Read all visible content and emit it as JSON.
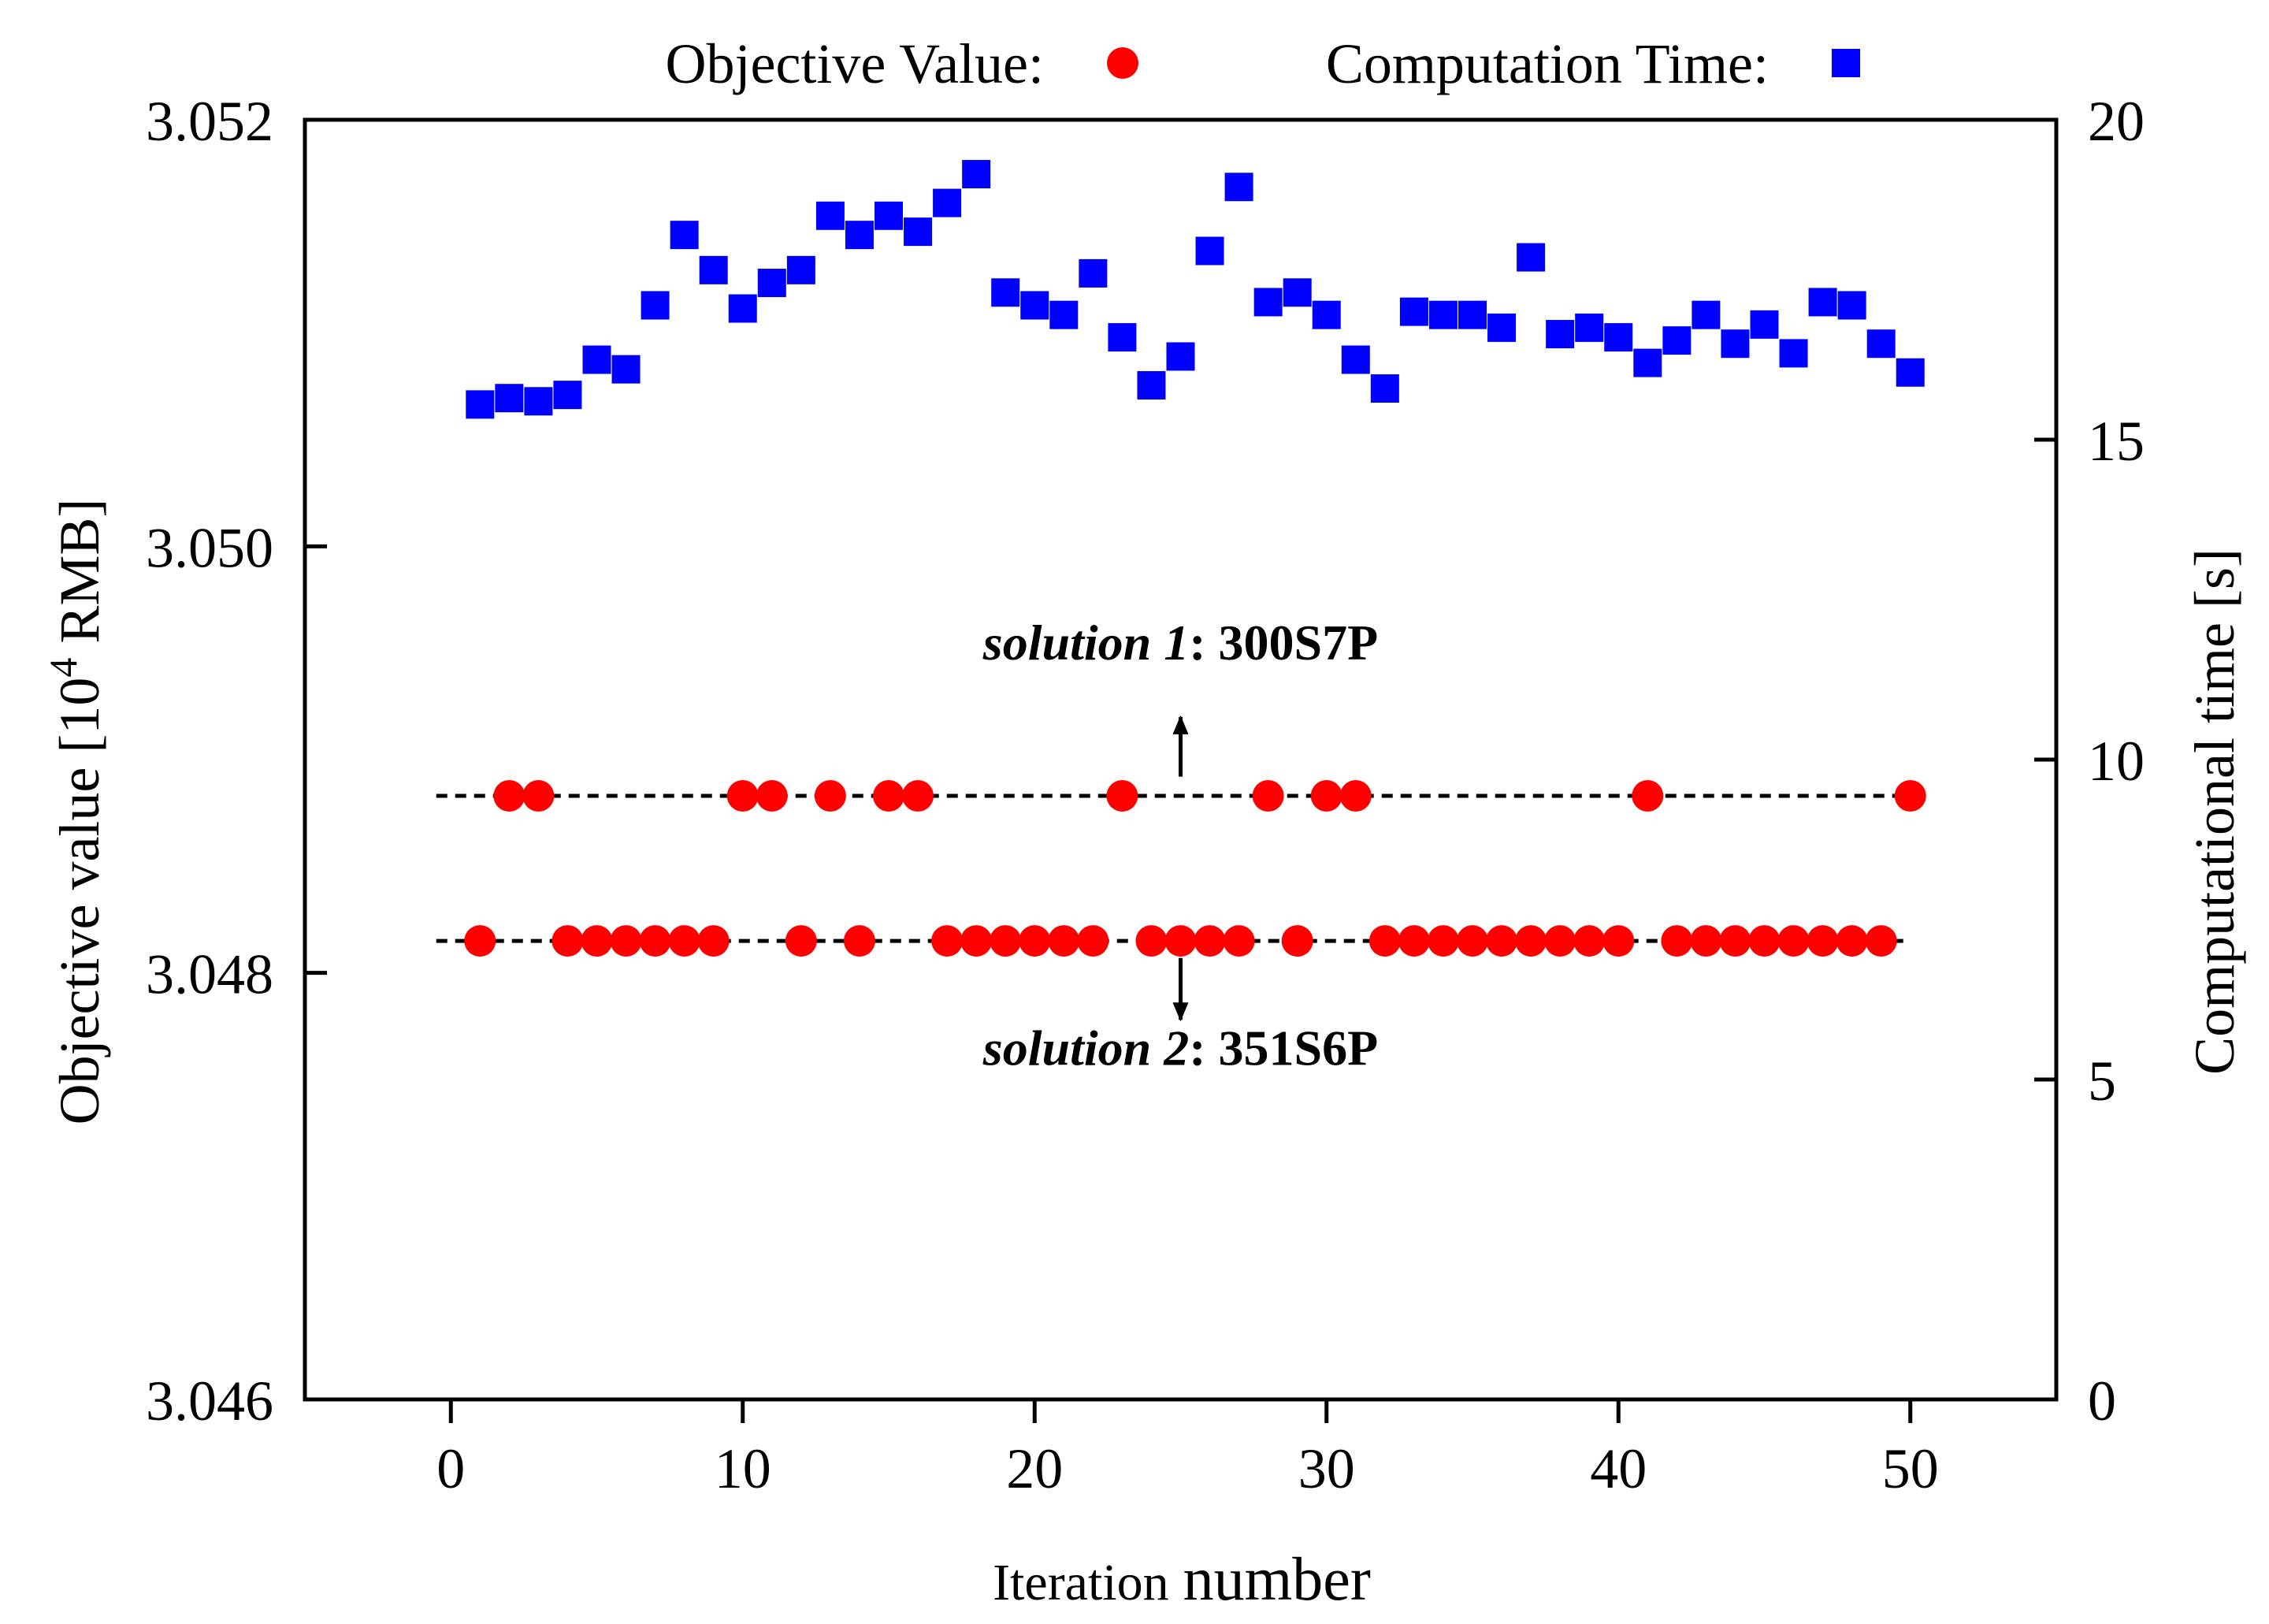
{
  "chart_data": {
    "type": "scatter",
    "title": "",
    "xlabel": {
      "part1": "Iteration",
      "part2": "number"
    },
    "ylabel_left": {
      "prefix": "Objective value [10",
      "sup": "4",
      "suffix": " RMB]"
    },
    "ylabel_right": "Computational time [s]",
    "xlim": [
      -5,
      55
    ],
    "ylim_left": [
      3.046,
      3.052
    ],
    "ylim_right": [
      0,
      20
    ],
    "x_ticks": [
      0,
      10,
      20,
      30,
      40,
      50
    ],
    "x_tick_labels": [
      "0",
      "10",
      "20",
      "30",
      "40",
      "50"
    ],
    "y_left_ticks": [
      3.046,
      3.048,
      3.05,
      3.052
    ],
    "y_left_tick_labels": [
      "3.046",
      "3.048",
      "3.050",
      "3.052"
    ],
    "y_right_ticks": [
      0,
      5,
      10,
      15,
      20
    ],
    "y_right_tick_labels": [
      "0",
      "5",
      "10",
      "15",
      "20"
    ],
    "legend": {
      "placement": "top",
      "entries": [
        {
          "label": "Objective Value:",
          "marker": "circle",
          "color": "#ff0000"
        },
        {
          "label": "Computation Time:",
          "marker": "square",
          "color": "#0000ff"
        }
      ]
    },
    "reference_lines": [
      {
        "value": 3.04883,
        "x_range": [
          -0.5,
          50
        ],
        "style": "dashed"
      },
      {
        "value": 3.04815,
        "x_range": [
          -0.5,
          50
        ],
        "style": "dashed"
      }
    ],
    "annotations": [
      {
        "italic": "solution 1",
        "bold": ": 300S7P",
        "x": 25,
        "y": 3.04955,
        "arrow_from": 3.04892,
        "arrow_to": 3.0492
      },
      {
        "italic": "solution 2",
        "bold": ": 351S6P",
        "x": 25,
        "y": 3.04765,
        "arrow_from": 3.04807,
        "arrow_to": 3.04778
      }
    ],
    "series": [
      {
        "name": "Objective Value",
        "axis": "left",
        "marker": "circle",
        "color": "#ff0000",
        "x": [
          1,
          2,
          3,
          4,
          5,
          6,
          7,
          8,
          9,
          10,
          11,
          12,
          13,
          14,
          15,
          16,
          17,
          18,
          19,
          20,
          21,
          22,
          23,
          24,
          25,
          26,
          27,
          28,
          29,
          30,
          31,
          32,
          33,
          34,
          35,
          36,
          37,
          38,
          39,
          40,
          41,
          42,
          43,
          44,
          45,
          46,
          47,
          48,
          49,
          50
        ],
        "y": [
          3.04815,
          3.04883,
          3.04883,
          3.04815,
          3.04815,
          3.04815,
          3.04815,
          3.04815,
          3.04815,
          3.04883,
          3.04883,
          3.04815,
          3.04883,
          3.04815,
          3.04883,
          3.04883,
          3.04815,
          3.04815,
          3.04815,
          3.04815,
          3.04815,
          3.04815,
          3.04883,
          3.04815,
          3.04815,
          3.04815,
          3.04815,
          3.04883,
          3.04815,
          3.04883,
          3.04883,
          3.04815,
          3.04815,
          3.04815,
          3.04815,
          3.04815,
          3.04815,
          3.04815,
          3.04815,
          3.04815,
          3.04883,
          3.04815,
          3.04815,
          3.04815,
          3.04815,
          3.04815,
          3.04815,
          3.04815,
          3.04815,
          3.04883
        ]
      },
      {
        "name": "Computation Time",
        "axis": "right",
        "marker": "square",
        "color": "#0000ff",
        "x": [
          1,
          2,
          3,
          4,
          5,
          6,
          7,
          8,
          9,
          10,
          11,
          12,
          13,
          14,
          15,
          16,
          17,
          18,
          19,
          20,
          21,
          22,
          23,
          24,
          25,
          26,
          27,
          28,
          29,
          30,
          31,
          32,
          33,
          34,
          35,
          36,
          37,
          38,
          39,
          40,
          41,
          42,
          43,
          44,
          45,
          46,
          47,
          48,
          49,
          50
        ],
        "y": [
          15.55,
          15.65,
          15.6,
          15.7,
          16.25,
          16.1,
          17.1,
          18.2,
          17.65,
          17.05,
          17.45,
          17.65,
          18.5,
          18.2,
          18.5,
          18.25,
          18.7,
          19.15,
          17.3,
          17.1,
          16.95,
          17.6,
          16.6,
          15.85,
          16.3,
          17.95,
          18.95,
          17.15,
          17.3,
          16.95,
          16.25,
          15.8,
          17.0,
          16.95,
          16.95,
          16.75,
          17.85,
          16.65,
          16.75,
          16.6,
          16.2,
          16.55,
          16.95,
          16.5,
          16.8,
          16.35,
          17.15,
          17.1,
          16.5,
          16.05
        ]
      }
    ]
  }
}
